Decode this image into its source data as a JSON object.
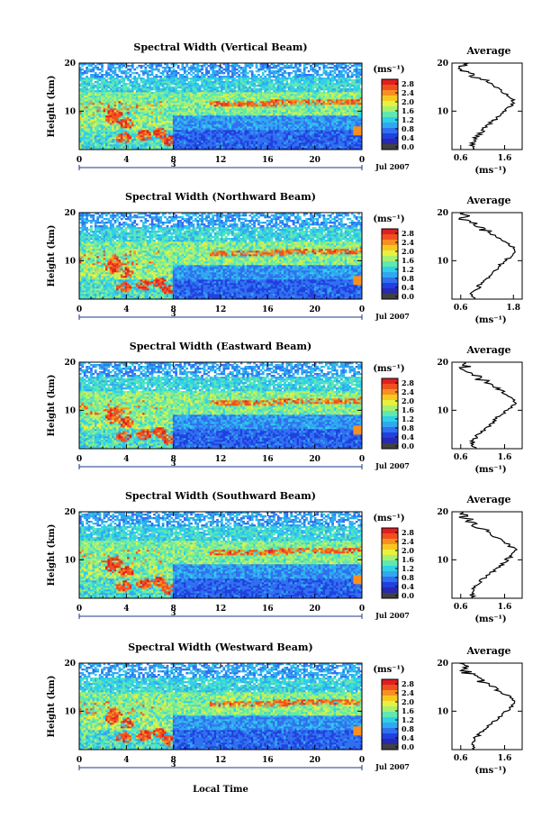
{
  "figure": {
    "local_time_label": "Local Time"
  },
  "colorbar": {
    "unit": "(ms⁻¹)",
    "ticks": [
      "2.8",
      "2.4",
      "2.0",
      "1.6",
      "1.2",
      "0.8",
      "0.4",
      "0.0"
    ],
    "colors": [
      "#e02020",
      "#f05020",
      "#f89020",
      "#f8c820",
      "#e8f040",
      "#a8f070",
      "#60e8b0",
      "#30d0e8",
      "#30a8f0",
      "#3070f0",
      "#2040e0",
      "#2828b0",
      "#404040"
    ]
  },
  "chart_data": [
    {
      "type": "heatmap",
      "title": "Spectral Width (Vertical Beam)",
      "ylabel": "Height (km)",
      "x_ticks": [
        "0",
        "4",
        "8",
        "12",
        "16",
        "20",
        "0"
      ],
      "y_ticks": [
        "20",
        "10"
      ],
      "day_label": "3",
      "month_label": "Jul 2007",
      "xlim": [
        0,
        24
      ],
      "ylim": [
        2,
        20
      ],
      "profile": {
        "title": "Average",
        "xlabel": "(ms⁻¹)",
        "x_ticks": [
          "0.6",
          "1.6"
        ],
        "y_ticks": [
          "20",
          "10"
        ],
        "xlim": [
          0.4,
          2.0
        ],
        "heights": [
          2,
          3,
          4,
          5,
          6,
          7,
          8,
          9,
          10,
          11,
          12,
          13,
          14,
          15,
          16,
          17,
          18,
          19,
          20
        ],
        "values": [
          0.9,
          0.85,
          0.9,
          1.0,
          1.1,
          1.2,
          1.35,
          1.5,
          1.6,
          1.75,
          1.8,
          1.7,
          1.55,
          1.4,
          1.25,
          1.0,
          0.8,
          0.65,
          0.75
        ]
      }
    },
    {
      "type": "heatmap",
      "title": "Spectral Width (Northward Beam)",
      "ylabel": "Height (km)",
      "x_ticks": [
        "0",
        "4",
        "8",
        "12",
        "16",
        "20",
        "0"
      ],
      "y_ticks": [
        "20",
        "10"
      ],
      "day_label": "3",
      "month_label": "Jul 2007",
      "xlim": [
        0,
        24
      ],
      "ylim": [
        2,
        20
      ],
      "profile": {
        "title": "Average",
        "xlabel": "(ms⁻¹)",
        "x_ticks": [
          "0.6",
          "1.8"
        ],
        "y_ticks": [
          "20",
          "10"
        ],
        "xlim": [
          0.4,
          2.0
        ],
        "heights": [
          2,
          3,
          4,
          5,
          6,
          7,
          8,
          9,
          10,
          11,
          12,
          13,
          14,
          15,
          16,
          17,
          18,
          19,
          20
        ],
        "values": [
          0.9,
          0.85,
          0.95,
          1.05,
          1.15,
          1.25,
          1.4,
          1.5,
          1.6,
          1.75,
          1.85,
          1.75,
          1.6,
          1.4,
          1.2,
          1.0,
          0.8,
          0.65,
          0.7
        ]
      }
    },
    {
      "type": "heatmap",
      "title": "Spectral Width (Eastward Beam)",
      "ylabel": "Height (km)",
      "x_ticks": [
        "0",
        "4",
        "8",
        "12",
        "16",
        "20",
        "0"
      ],
      "y_ticks": [
        "20",
        "10"
      ],
      "day_label": "3",
      "month_label": "Jul 2007",
      "xlim": [
        0,
        24
      ],
      "ylim": [
        2,
        20
      ],
      "profile": {
        "title": "Average",
        "xlabel": "(ms⁻¹)",
        "x_ticks": [
          "0.6",
          "1.6"
        ],
        "y_ticks": [
          "20",
          "10"
        ],
        "xlim": [
          0.4,
          2.0
        ],
        "heights": [
          2,
          3,
          4,
          5,
          6,
          7,
          8,
          9,
          10,
          11,
          12,
          13,
          14,
          15,
          16,
          17,
          18,
          19,
          20
        ],
        "values": [
          0.9,
          0.85,
          0.9,
          1.0,
          1.15,
          1.3,
          1.4,
          1.5,
          1.65,
          1.8,
          1.85,
          1.7,
          1.55,
          1.35,
          1.15,
          0.95,
          0.8,
          0.7,
          0.75
        ]
      }
    },
    {
      "type": "heatmap",
      "title": "Spectral Width (Southward Beam)",
      "ylabel": "Height (km)",
      "x_ticks": [
        "0",
        "4",
        "8",
        "12",
        "16",
        "20",
        "0"
      ],
      "y_ticks": [
        "20",
        "10"
      ],
      "day_label": "3",
      "month_label": "Jul 2007",
      "xlim": [
        0,
        24
      ],
      "ylim": [
        2,
        20
      ],
      "profile": {
        "title": "Average",
        "xlabel": "(ms⁻¹)",
        "x_ticks": [
          "0.6",
          "1.6"
        ],
        "y_ticks": [
          "20",
          "10"
        ],
        "xlim": [
          0.4,
          2.0
        ],
        "heights": [
          2,
          3,
          4,
          5,
          6,
          7,
          8,
          9,
          10,
          11,
          12,
          13,
          14,
          15,
          16,
          17,
          18,
          19,
          20
        ],
        "values": [
          0.9,
          0.85,
          0.9,
          1.0,
          1.1,
          1.25,
          1.4,
          1.55,
          1.65,
          1.8,
          1.85,
          1.7,
          1.55,
          1.35,
          1.15,
          0.95,
          0.8,
          0.65,
          0.7
        ]
      }
    },
    {
      "type": "heatmap",
      "title": "Spectral Width (Westward Beam)",
      "ylabel": "Height (km)",
      "x_ticks": [
        "0",
        "4",
        "8",
        "12",
        "16",
        "20",
        "0"
      ],
      "y_ticks": [
        "20",
        "10"
      ],
      "day_label": "3",
      "month_label": "Jul 2007",
      "xlim": [
        0,
        24
      ],
      "ylim": [
        2,
        20
      ],
      "profile": {
        "title": "Average",
        "xlabel": "(ms⁻¹)",
        "x_ticks": [
          "0.6",
          "1.6"
        ],
        "y_ticks": [
          "20",
          "10"
        ],
        "xlim": [
          0.4,
          2.0
        ],
        "heights": [
          2,
          3,
          4,
          5,
          6,
          7,
          8,
          9,
          10,
          11,
          12,
          13,
          14,
          15,
          16,
          17,
          18,
          19,
          20
        ],
        "values": [
          0.9,
          0.85,
          0.9,
          1.0,
          1.1,
          1.25,
          1.4,
          1.5,
          1.65,
          1.8,
          1.85,
          1.7,
          1.5,
          1.35,
          1.15,
          0.95,
          0.75,
          0.65,
          0.7
        ]
      }
    }
  ]
}
